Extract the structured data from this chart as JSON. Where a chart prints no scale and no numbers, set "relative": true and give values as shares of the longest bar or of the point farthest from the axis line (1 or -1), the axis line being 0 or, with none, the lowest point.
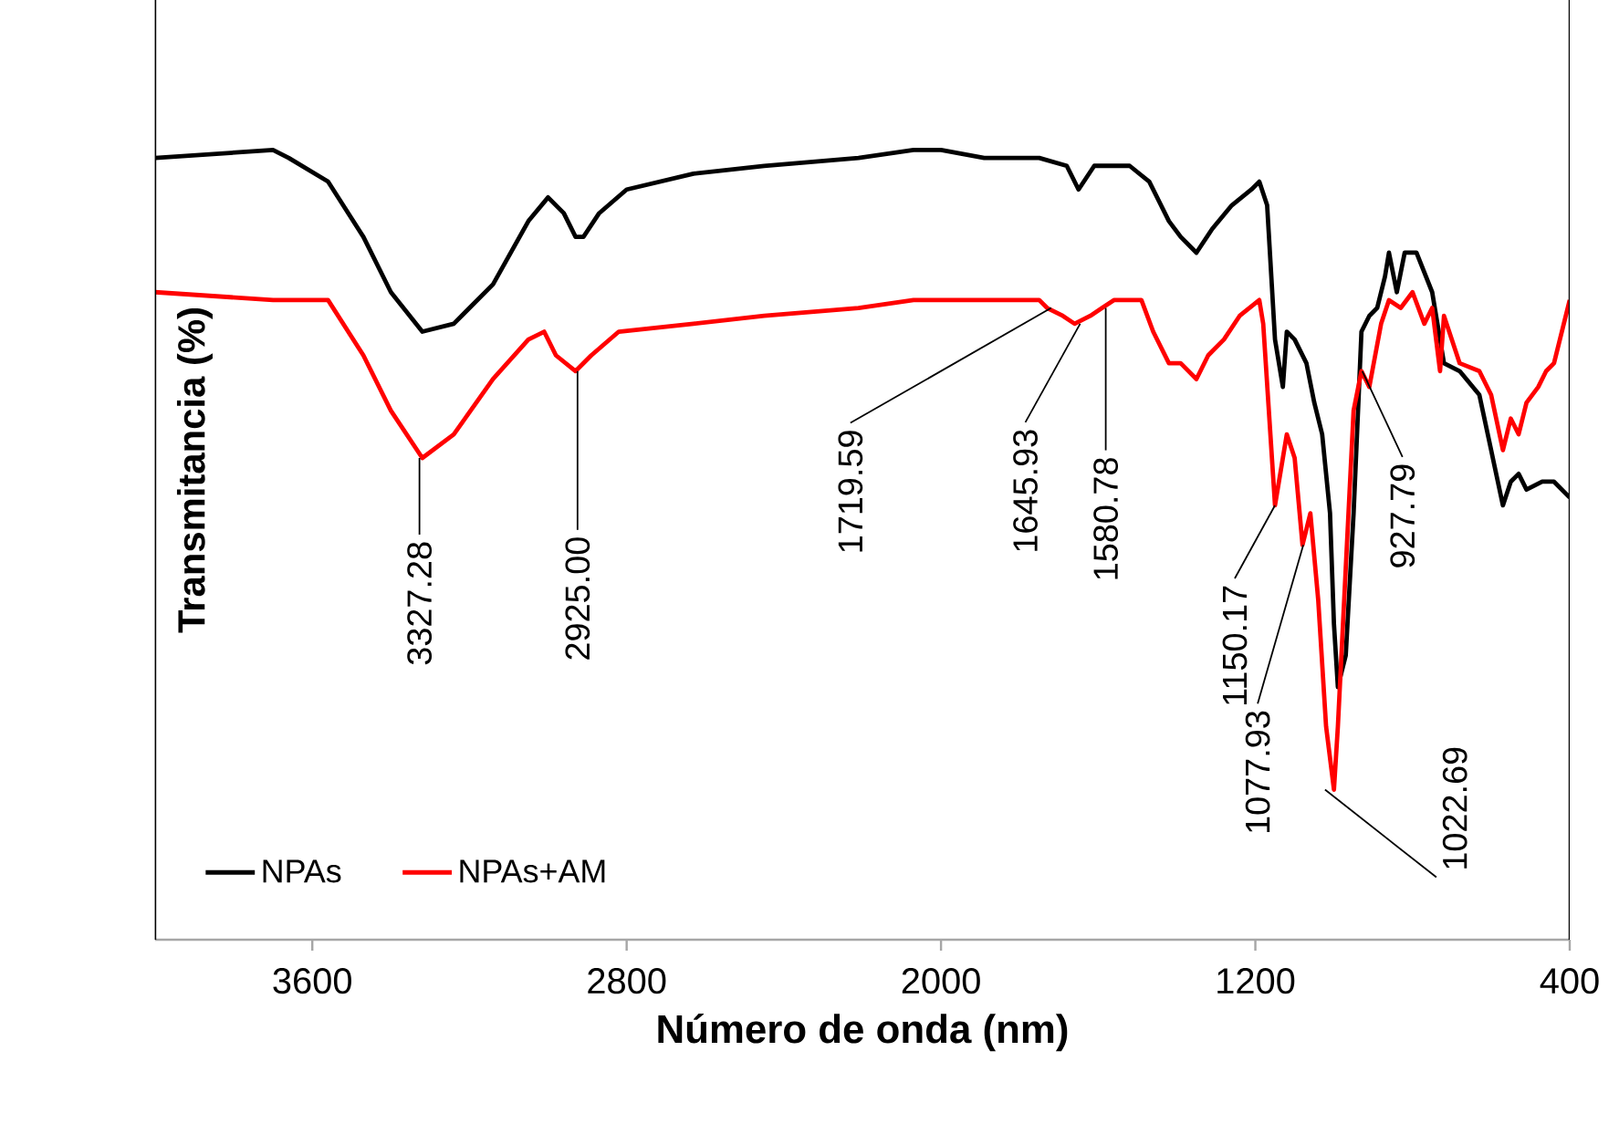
{
  "chart_data": {
    "type": "line",
    "relative": true,
    "xlabel": "Número de onda (nm)",
    "ylabel": "Transmitancia (%)",
    "xlim": [
      4000,
      400
    ],
    "xticks": [
      3600,
      2800,
      2000,
      1200,
      400
    ],
    "legend": "bottom left",
    "grid": false,
    "series": [
      {
        "name": "NPAs",
        "color": "#000000",
        "x": [
          4000,
          3700,
          3660,
          3560,
          3470,
          3400,
          3320,
          3240,
          3140,
          3050,
          3000,
          2960,
          2930,
          2910,
          2870,
          2800,
          2630,
          2450,
          2210,
          2070,
          2000,
          1890,
          1750,
          1680,
          1650,
          1610,
          1520,
          1470,
          1420,
          1390,
          1350,
          1310,
          1260,
          1210,
          1190,
          1170,
          1150,
          1130,
          1120,
          1100,
          1070,
          1050,
          1030,
          1010,
          1000,
          990,
          970,
          950,
          930,
          910,
          890,
          870,
          860,
          840,
          820,
          790,
          750,
          720,
          680,
          630,
          600,
          570,
          550,
          530,
          510,
          470,
          440,
          400
        ],
        "values": [
          0.99,
          1.0,
          0.99,
          0.96,
          0.89,
          0.82,
          0.77,
          0.78,
          0.83,
          0.91,
          0.94,
          0.92,
          0.89,
          0.89,
          0.92,
          0.95,
          0.97,
          0.98,
          0.99,
          1.0,
          1.0,
          0.99,
          0.99,
          0.98,
          0.95,
          0.98,
          0.98,
          0.96,
          0.91,
          0.89,
          0.87,
          0.9,
          0.93,
          0.95,
          0.96,
          0.93,
          0.76,
          0.7,
          0.77,
          0.76,
          0.73,
          0.68,
          0.64,
          0.54,
          0.4,
          0.32,
          0.36,
          0.54,
          0.77,
          0.79,
          0.8,
          0.84,
          0.87,
          0.82,
          0.87,
          0.87,
          0.82,
          0.73,
          0.72,
          0.69,
          0.62,
          0.55,
          0.58,
          0.59,
          0.57,
          0.58,
          0.58,
          0.56
        ]
      },
      {
        "name": "NPAs+AM",
        "color": "#ff0000",
        "x": [
          4000,
          3700,
          3560,
          3470,
          3400,
          3320,
          3240,
          3140,
          3050,
          3010,
          2980,
          2930,
          2890,
          2820,
          2630,
          2450,
          2210,
          2070,
          1890,
          1750,
          1730,
          1690,
          1660,
          1620,
          1590,
          1560,
          1520,
          1490,
          1460,
          1420,
          1390,
          1350,
          1320,
          1280,
          1240,
          1190,
          1180,
          1150,
          1130,
          1120,
          1100,
          1080,
          1060,
          1040,
          1020,
          1000,
          990,
          970,
          950,
          930,
          910,
          880,
          860,
          830,
          800,
          770,
          750,
          730,
          720,
          680,
          630,
          600,
          570,
          550,
          530,
          510,
          480,
          460,
          440,
          400
        ],
        "values": [
          0.82,
          0.81,
          0.81,
          0.74,
          0.67,
          0.61,
          0.64,
          0.71,
          0.76,
          0.77,
          0.74,
          0.72,
          0.74,
          0.77,
          0.78,
          0.79,
          0.8,
          0.81,
          0.81,
          0.81,
          0.8,
          0.79,
          0.78,
          0.79,
          0.8,
          0.81,
          0.81,
          0.81,
          0.77,
          0.73,
          0.73,
          0.71,
          0.74,
          0.76,
          0.79,
          0.81,
          0.78,
          0.55,
          0.61,
          0.64,
          0.61,
          0.5,
          0.54,
          0.43,
          0.27,
          0.19,
          0.27,
          0.47,
          0.67,
          0.72,
          0.7,
          0.78,
          0.81,
          0.8,
          0.82,
          0.78,
          0.8,
          0.72,
          0.79,
          0.73,
          0.72,
          0.69,
          0.62,
          0.66,
          0.64,
          0.68,
          0.7,
          0.72,
          0.73,
          0.81
        ]
      }
    ],
    "annotations": [
      {
        "text": "3327.28",
        "x": 3327.28,
        "y": 0.61
      },
      {
        "text": "2925.00",
        "x": 2925.0,
        "y": 0.72
      },
      {
        "text": "1719.59",
        "x": 1719.59,
        "y": 0.8
      },
      {
        "text": "1645.93",
        "x": 1645.93,
        "y": 0.78
      },
      {
        "text": "1580.78",
        "x": 1580.78,
        "y": 0.8
      },
      {
        "text": "1150.17",
        "x": 1150.17,
        "y": 0.55
      },
      {
        "text": "1077.93",
        "x": 1077.93,
        "y": 0.5
      },
      {
        "text": "1022.69",
        "x": 1022.69,
        "y": 0.19
      },
      {
        "text": "927.79",
        "x": 927.79,
        "y": 0.72
      }
    ]
  }
}
